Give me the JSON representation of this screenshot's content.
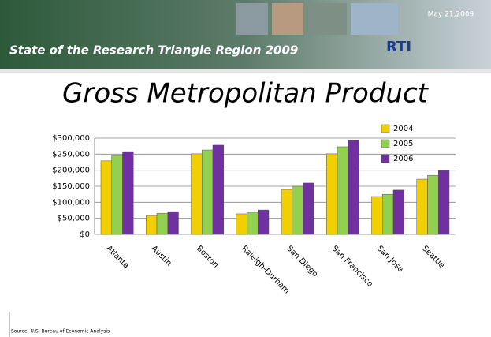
{
  "header": {
    "banner": "State of the Research Triangle Region 2009",
    "date": "May 21,2009",
    "logo": "RTI"
  },
  "chart_data": {
    "type": "bar",
    "title": "Gross Metropolitan Product",
    "categories": [
      "Atlanta",
      "Austin",
      "Boston",
      "Raleigh-Durham",
      "San Diego",
      "San Francisco",
      "San Jose",
      "Seattle"
    ],
    "series": [
      {
        "name": "2004",
        "color": "#f2cf00",
        "values": [
          229000,
          59000,
          251000,
          64000,
          140000,
          251000,
          118000,
          172000
        ]
      },
      {
        "name": "2005",
        "color": "#92d050",
        "values": [
          246000,
          66000,
          263000,
          69000,
          150000,
          273000,
          125000,
          184000
        ]
      },
      {
        "name": "2006",
        "color": "#7030a0",
        "values": [
          258000,
          71000,
          278000,
          76000,
          160000,
          293000,
          138000,
          199000
        ]
      }
    ],
    "ylim": [
      0,
      300000
    ],
    "yticks": [
      {
        "value": 0,
        "label": "$0"
      },
      {
        "value": 50000,
        "label": "$50,000"
      },
      {
        "value": 100000,
        "label": "$100,000"
      },
      {
        "value": 150000,
        "label": "$150,000"
      },
      {
        "value": 200000,
        "label": "$200,000"
      },
      {
        "value": 250000,
        "label": "$250,000"
      },
      {
        "value": 300000,
        "label": "$300,000"
      }
    ],
    "grid": true,
    "legend": "top-right",
    "source": "Source: U.S. Bureau of Economic Analysis"
  }
}
